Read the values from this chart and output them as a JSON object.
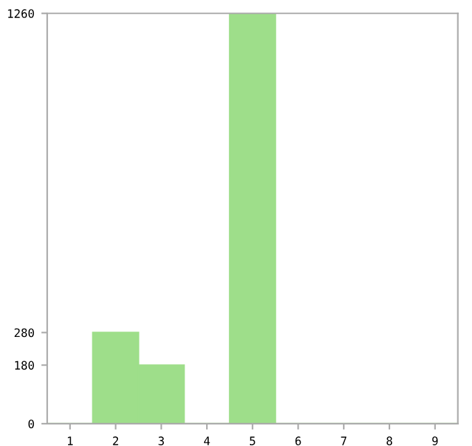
{
  "chart_data": {
    "type": "bar",
    "categories": [
      "1",
      "2",
      "3",
      "4",
      "5",
      "6",
      "7",
      "8",
      "9"
    ],
    "values": [
      0,
      280,
      180,
      0,
      1260,
      0,
      0,
      0,
      0
    ],
    "color": "#9ede8a",
    "ylim": [
      0,
      1260
    ],
    "yticks": [
      0,
      180,
      280,
      1260
    ],
    "grid": false
  }
}
